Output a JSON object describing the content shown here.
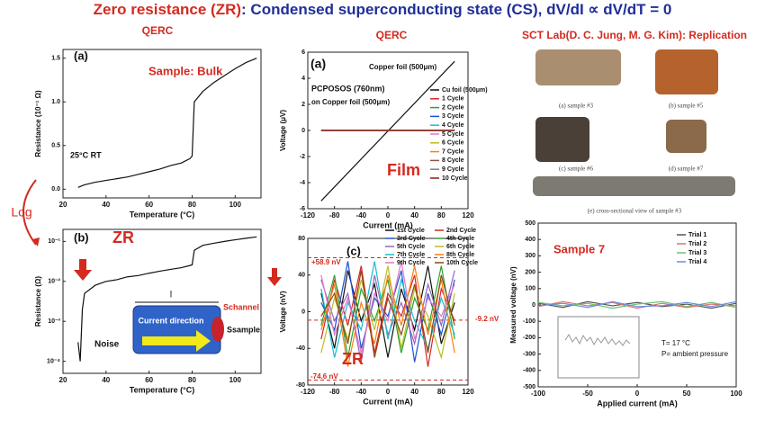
{
  "title_parts": [
    {
      "text": "Zero  resistance (ZR)",
      "color": "#d42a1f"
    },
    {
      "text": ": Condensed superconducting state (CS), dV/dI ∝ dV/dT = 0",
      "color": "#1f2f9a"
    }
  ],
  "headers": [
    "QERC",
    "QERC",
    "SCT Lab(D. C. Jung, M. G. Kim): Replication"
  ],
  "side_label": "Log",
  "photos": [
    {
      "caption": "(a) sample #3"
    },
    {
      "caption": "(b) sample #5"
    },
    {
      "caption": "(c) sample #6"
    },
    {
      "caption": "(d) sample #7"
    },
    {
      "caption": "(e) cross-sectional view of sample #3"
    }
  ],
  "chart_data": [
    {
      "type": "line",
      "xlabel": "Temperature (°C)",
      "ylabel": "Resistance (10⁻¹ Ω)",
      "annotations": [
        "(a)",
        "Sample: Bulk",
        "25°C RT"
      ],
      "x": [
        27,
        30,
        35,
        40,
        45,
        50,
        55,
        60,
        65,
        70,
        75,
        79,
        80,
        81,
        85,
        90,
        95,
        100,
        105,
        110
      ],
      "series": [
        {
          "name": "Bulk",
          "color": "#111111",
          "values": [
            0.02,
            0.05,
            0.08,
            0.1,
            0.12,
            0.14,
            0.17,
            0.2,
            0.23,
            0.27,
            0.3,
            0.35,
            0.38,
            1.0,
            1.12,
            1.22,
            1.3,
            1.38,
            1.45,
            1.5
          ]
        }
      ],
      "xlim": [
        20,
        112
      ],
      "ylim": [
        -0.1,
        1.6
      ],
      "xticks": [
        20,
        40,
        60,
        80,
        100
      ],
      "yticks": [
        {
          "value": 0,
          "label": "0.0"
        },
        {
          "value": 0.5,
          "label": "0.5"
        },
        {
          "value": 1,
          "label": "1.0"
        },
        {
          "value": 1.5,
          "label": "1.5"
        }
      ]
    },
    {
      "type": "line",
      "log_y": true,
      "xlabel": "Temperature (°C)",
      "ylabel": "Resistance (Ω)",
      "annotations": [
        "(b)",
        "ZR",
        "Noise",
        "Current direction",
        "l",
        "Schannel",
        "Ssample"
      ],
      "x": [
        27,
        28,
        29,
        30,
        35,
        40,
        45,
        50,
        55,
        60,
        65,
        70,
        75,
        79,
        80,
        81,
        85,
        90,
        95,
        100,
        105,
        110
      ],
      "series": [
        {
          "name": "Bulk",
          "color": "#111111",
          "values": [
            0.0003,
            0.0001,
            0.002,
            0.005,
            0.008,
            0.01,
            0.011,
            0.013,
            0.014,
            0.016,
            0.018,
            0.02,
            0.022,
            0.025,
            0.026,
            0.06,
            0.08,
            0.09,
            0.1,
            0.11,
            0.12,
            0.13
          ]
        }
      ],
      "xlim": [
        20,
        112
      ],
      "ylim": [
        5e-05,
        0.2
      ],
      "xticks": [
        20,
        40,
        60,
        80,
        100
      ],
      "yticks": [
        {
          "value": 0.0001,
          "label": "10⁻⁴"
        },
        {
          "value": 0.001,
          "label": "10⁻³"
        },
        {
          "value": 0.01,
          "label": "10⁻²"
        },
        {
          "value": 0.1,
          "label": "10⁻¹"
        }
      ]
    },
    {
      "type": "line",
      "xlabel": "Current (mA)",
      "ylabel": "Voltage (μV)",
      "annotations": [
        "(a)",
        "Copper foil (500μm)",
        "PCPOSOS (760nm)",
        "on Copper foil (500μm)",
        "Film"
      ],
      "x": [
        -100,
        100
      ],
      "series": [
        {
          "name": "Cu foil (500μm)",
          "color": "#111111",
          "values": [
            -5.4,
            5.3
          ]
        },
        {
          "name": "1 Cycle",
          "color": "#d62728",
          "values": [
            0,
            0
          ]
        },
        {
          "name": "2 Cycle",
          "color": "#2ca02c",
          "values": [
            0,
            0
          ]
        },
        {
          "name": "3 Cycle",
          "color": "#1f4fd6",
          "values": [
            0,
            0
          ]
        },
        {
          "name": "4 Cycle",
          "color": "#17becf",
          "values": [
            0,
            0
          ]
        },
        {
          "name": "5 Cycle",
          "color": "#e377c2",
          "values": [
            0,
            0
          ]
        },
        {
          "name": "6 Cycle",
          "color": "#bcbd22",
          "values": [
            0,
            0
          ]
        },
        {
          "name": "7 Cycle",
          "color": "#ff7f0e",
          "values": [
            0,
            0
          ]
        },
        {
          "name": "8 Cycle",
          "color": "#8c564b",
          "values": [
            0,
            0
          ]
        },
        {
          "name": "9 Cycle",
          "color": "#7f7f7f",
          "values": [
            0,
            0
          ]
        },
        {
          "name": "10 Cycle",
          "color": "#8b1a1a",
          "values": [
            0,
            0
          ]
        }
      ],
      "xlim": [
        -120,
        120
      ],
      "ylim": [
        -6,
        6
      ],
      "xticks": [
        -120,
        -80,
        -40,
        0,
        40,
        80,
        120
      ],
      "yticks": [
        -6,
        -4,
        -2,
        0,
        2,
        4,
        6
      ]
    },
    {
      "type": "line",
      "xlabel": "Current (mA)",
      "ylabel": "Voltage (nV)",
      "annotations": [
        "(c)",
        "ZR"
      ],
      "reference_lines": [
        {
          "value": 58.9,
          "label": "+58.9 nV"
        },
        {
          "value": -9.2,
          "label": "-9.2 nV"
        },
        {
          "value": -74.6,
          "label": "-74.6 nV"
        }
      ],
      "x": [
        -100,
        -80,
        -60,
        -40,
        -20,
        0,
        20,
        40,
        60,
        80,
        100
      ],
      "series": [
        {
          "name": "1st Cycle",
          "color": "#111111",
          "values": [
            20,
            -40,
            45,
            -10,
            30,
            -50,
            25,
            -20,
            50,
            -35,
            10
          ]
        },
        {
          "name": "2nd Cycle",
          "color": "#d62728",
          "values": [
            -30,
            35,
            -15,
            50,
            -45,
            20,
            -5,
            40,
            -60,
            25,
            -10
          ]
        },
        {
          "name": "3rd Cycle",
          "color": "#1f4fd6",
          "values": [
            10,
            -20,
            55,
            -40,
            15,
            -5,
            45,
            -55,
            20,
            -25,
            35
          ]
        },
        {
          "name": "4th Cycle",
          "color": "#2ca02c",
          "values": [
            -15,
            40,
            -50,
            25,
            -10,
            35,
            -45,
            15,
            -20,
            50,
            -30
          ]
        },
        {
          "name": "5th Cycle",
          "color": "#9467bd",
          "values": [
            35,
            -10,
            20,
            -55,
            40,
            -25,
            10,
            -35,
            30,
            -15,
            45
          ]
        },
        {
          "name": "6th Cycle",
          "color": "#bcbd22",
          "values": [
            -45,
            15,
            -30,
            35,
            -20,
            50,
            -40,
            25,
            -5,
            -50,
            20
          ]
        },
        {
          "name": "7th Cycle",
          "color": "#17becf",
          "values": [
            25,
            -50,
            10,
            -20,
            55,
            -30,
            35,
            -10,
            -40,
            15,
            -25
          ]
        },
        {
          "name": "8th Cycle",
          "color": "#ff7f0e",
          "values": [
            -20,
            30,
            -60,
            10,
            -35,
            40,
            -15,
            50,
            -25,
            35,
            -45
          ]
        },
        {
          "name": "9th Cycle",
          "color": "#e377c2",
          "values": [
            40,
            -25,
            15,
            -45,
            20,
            -10,
            55,
            -30,
            15,
            -5,
            30
          ]
        },
        {
          "name": "10th Cycle",
          "color": "#8b4513",
          "values": [
            -5,
            20,
            -35,
            45,
            -50,
            15,
            -25,
            30,
            -45,
            40,
            -15
          ]
        }
      ],
      "xlim": [
        -120,
        120
      ],
      "ylim": [
        -80,
        80
      ],
      "xticks": [
        -120,
        -80,
        -40,
        0,
        40,
        80,
        120
      ],
      "yticks": [
        -80,
        -40,
        0,
        40,
        80
      ]
    },
    {
      "type": "line",
      "xlabel": "Applied current (mA)",
      "ylabel": "Measured voltage (nV)",
      "annotations": [
        "Sample 7",
        "T= 17 °C",
        "P= ambient pressure"
      ],
      "x": [
        -100,
        -75,
        -50,
        -25,
        0,
        25,
        50,
        75,
        100
      ],
      "series": [
        {
          "name": "Trial 1",
          "color": "#555555",
          "values": [
            10,
            -15,
            20,
            -5,
            15,
            -10,
            5,
            -20,
            10
          ]
        },
        {
          "name": "Trial 2",
          "color": "#e07070",
          "values": [
            -10,
            20,
            -5,
            15,
            -20,
            10,
            -15,
            5,
            -5
          ]
        },
        {
          "name": "Trial 3",
          "color": "#6cc06c",
          "values": [
            15,
            -5,
            10,
            -20,
            5,
            20,
            -10,
            15,
            -15
          ]
        },
        {
          "name": "Trial 4",
          "color": "#6c8ce0",
          "values": [
            -5,
            10,
            -15,
            20,
            -10,
            -5,
            15,
            -10,
            20
          ]
        }
      ],
      "xlim": [
        -100,
        100
      ],
      "ylim": [
        -500,
        500
      ],
      "xticks": [
        -100,
        -50,
        0,
        50,
        100
      ],
      "yticks": [
        -500,
        -400,
        -300,
        -200,
        -100,
        0,
        100,
        200,
        300,
        400,
        500
      ]
    }
  ]
}
